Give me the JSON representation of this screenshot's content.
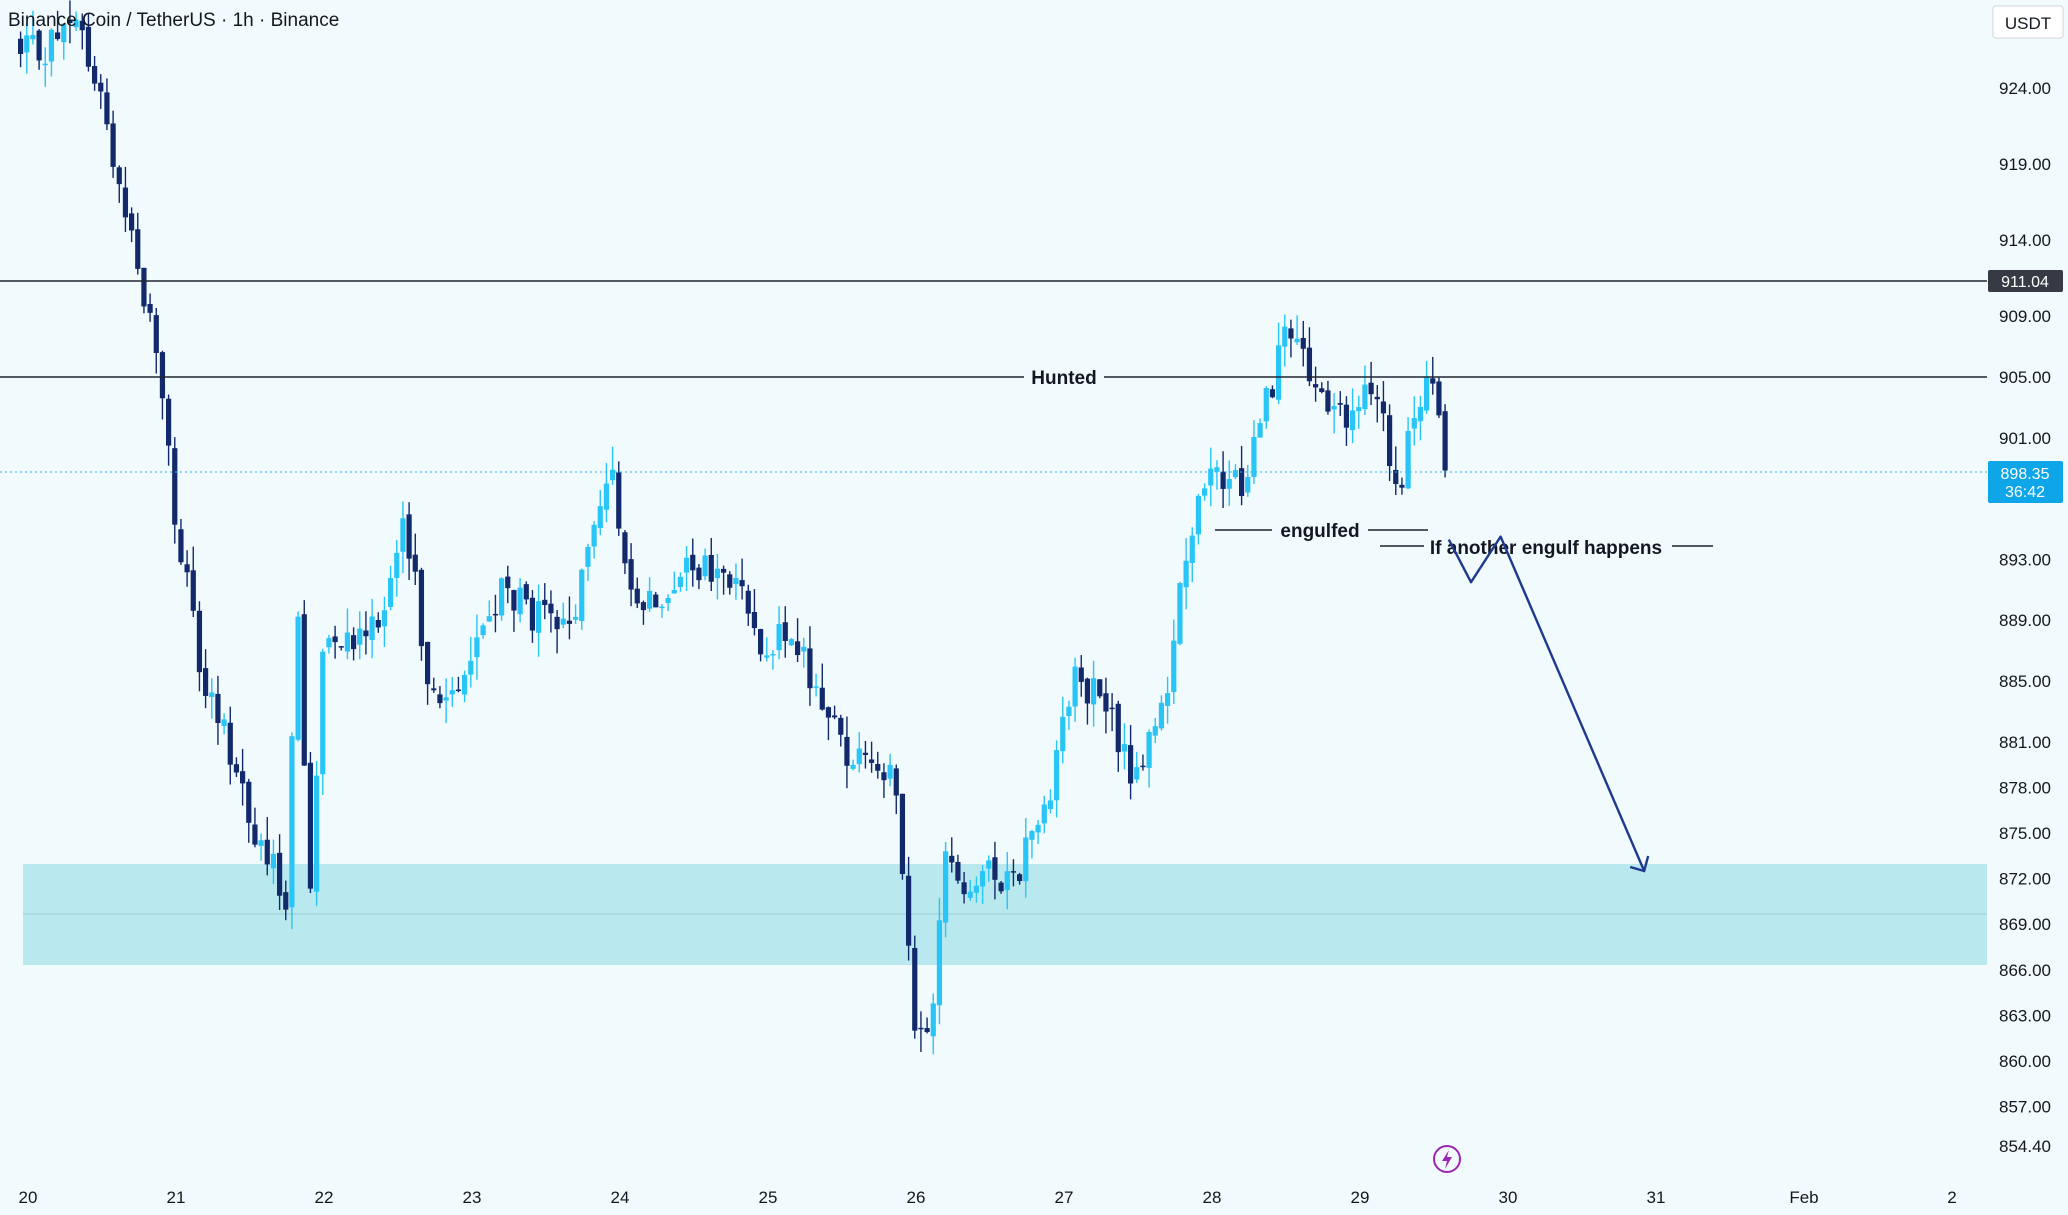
{
  "header": {
    "symbol_label": "Binance Coin / TetherUS · 1h · Binance"
  },
  "axis": {
    "currency_label": "USDT"
  },
  "price_badges": {
    "level": "911.04",
    "last_price": "898.35",
    "countdown": "36:42"
  },
  "annotations": {
    "hunted": "Hunted",
    "engulfed": "engulfed",
    "engulf_condition": "If another engulf happens"
  },
  "colors": {
    "bullish": "#29c5f6",
    "bearish": "#12296b",
    "zone": "#b9e9ef",
    "arrow": "#1e3a8f",
    "badge": "#0ea5e9",
    "background": "#f1fafd"
  },
  "chart_data": {
    "type": "candlestick",
    "title": "Binance Coin / TetherUS · 1h · Binance",
    "y_axis_label": "USDT",
    "y_ticks": [
      924.0,
      919.0,
      914.0,
      909.0,
      905.0,
      901.0,
      893.0,
      889.0,
      885.0,
      881.0,
      878.0,
      875.0,
      872.0,
      869.0,
      866.0,
      863.0,
      860.0,
      857.0,
      854.4
    ],
    "x_ticks": [
      "20",
      "21",
      "22",
      "23",
      "24",
      "25",
      "26",
      "27",
      "28",
      "29",
      "30",
      "31",
      "Feb",
      "2"
    ],
    "ylim": [
      853.5,
      928.5
    ],
    "key_levels": [
      {
        "label": "911.04",
        "value": 911.04
      },
      {
        "label": "Hunted",
        "value": 905.0
      }
    ],
    "last_price": 898.35,
    "demand_zone": {
      "from": 866.5,
      "to": 873.0
    },
    "anchors": [
      {
        "day": 19.95,
        "price": 926.0
      },
      {
        "day": 20.35,
        "price": 928.0
      },
      {
        "day": 20.6,
        "price": 919.0
      },
      {
        "day": 20.9,
        "price": 905.0
      },
      {
        "day": 21.0,
        "price": 895.0
      },
      {
        "day": 21.2,
        "price": 884.0
      },
      {
        "day": 21.4,
        "price": 880.0
      },
      {
        "day": 21.55,
        "price": 874.0
      },
      {
        "day": 21.75,
        "price": 871.0
      },
      {
        "day": 21.82,
        "price": 891.0
      },
      {
        "day": 21.9,
        "price": 870.0
      },
      {
        "day": 22.0,
        "price": 889.0
      },
      {
        "day": 22.2,
        "price": 888.0
      },
      {
        "day": 22.4,
        "price": 890.0
      },
      {
        "day": 22.55,
        "price": 895.0
      },
      {
        "day": 22.75,
        "price": 883.0
      },
      {
        "day": 22.95,
        "price": 886.0
      },
      {
        "day": 23.2,
        "price": 891.0
      },
      {
        "day": 23.45,
        "price": 889.0
      },
      {
        "day": 23.65,
        "price": 888.0
      },
      {
        "day": 23.85,
        "price": 896.0
      },
      {
        "day": 23.93,
        "price": 900.0
      },
      {
        "day": 24.0,
        "price": 893.0
      },
      {
        "day": 24.2,
        "price": 890.0
      },
      {
        "day": 24.35,
        "price": 892.0
      },
      {
        "day": 24.65,
        "price": 892.0
      },
      {
        "day": 24.8,
        "price": 891.0
      },
      {
        "day": 24.95,
        "price": 888.0
      },
      {
        "day": 25.2,
        "price": 887.0
      },
      {
        "day": 25.35,
        "price": 884.0
      },
      {
        "day": 25.55,
        "price": 880.0
      },
      {
        "day": 25.75,
        "price": 880.0
      },
      {
        "day": 25.85,
        "price": 878.0
      },
      {
        "day": 25.93,
        "price": 870.0
      },
      {
        "day": 26.0,
        "price": 860.0
      },
      {
        "day": 26.1,
        "price": 863.0
      },
      {
        "day": 26.2,
        "price": 873.0
      },
      {
        "day": 26.35,
        "price": 872.0
      },
      {
        "day": 26.5,
        "price": 872.0
      },
      {
        "day": 26.7,
        "price": 873.0
      },
      {
        "day": 26.9,
        "price": 878.0
      },
      {
        "day": 27.05,
        "price": 885.0
      },
      {
        "day": 27.25,
        "price": 884.0
      },
      {
        "day": 27.45,
        "price": 879.0
      },
      {
        "day": 27.65,
        "price": 882.0
      },
      {
        "day": 27.85,
        "price": 895.0
      },
      {
        "day": 28.0,
        "price": 898.0
      },
      {
        "day": 28.2,
        "price": 898.0
      },
      {
        "day": 28.35,
        "price": 903.0
      },
      {
        "day": 28.5,
        "price": 908.0
      },
      {
        "day": 28.7,
        "price": 904.0
      },
      {
        "day": 28.85,
        "price": 902.0
      },
      {
        "day": 29.0,
        "price": 903.0
      },
      {
        "day": 29.15,
        "price": 904.0
      },
      {
        "day": 29.25,
        "price": 896.0
      },
      {
        "day": 29.35,
        "price": 902.0
      },
      {
        "day": 29.5,
        "price": 905.0
      },
      {
        "day": 29.58,
        "price": 898.35
      }
    ],
    "projection": [
      {
        "day": 29.6,
        "price": 894.3
      },
      {
        "day": 29.75,
        "price": 891.5
      },
      {
        "day": 29.95,
        "price": 894.5
      },
      {
        "day": 30.92,
        "price": 872.5
      }
    ]
  }
}
